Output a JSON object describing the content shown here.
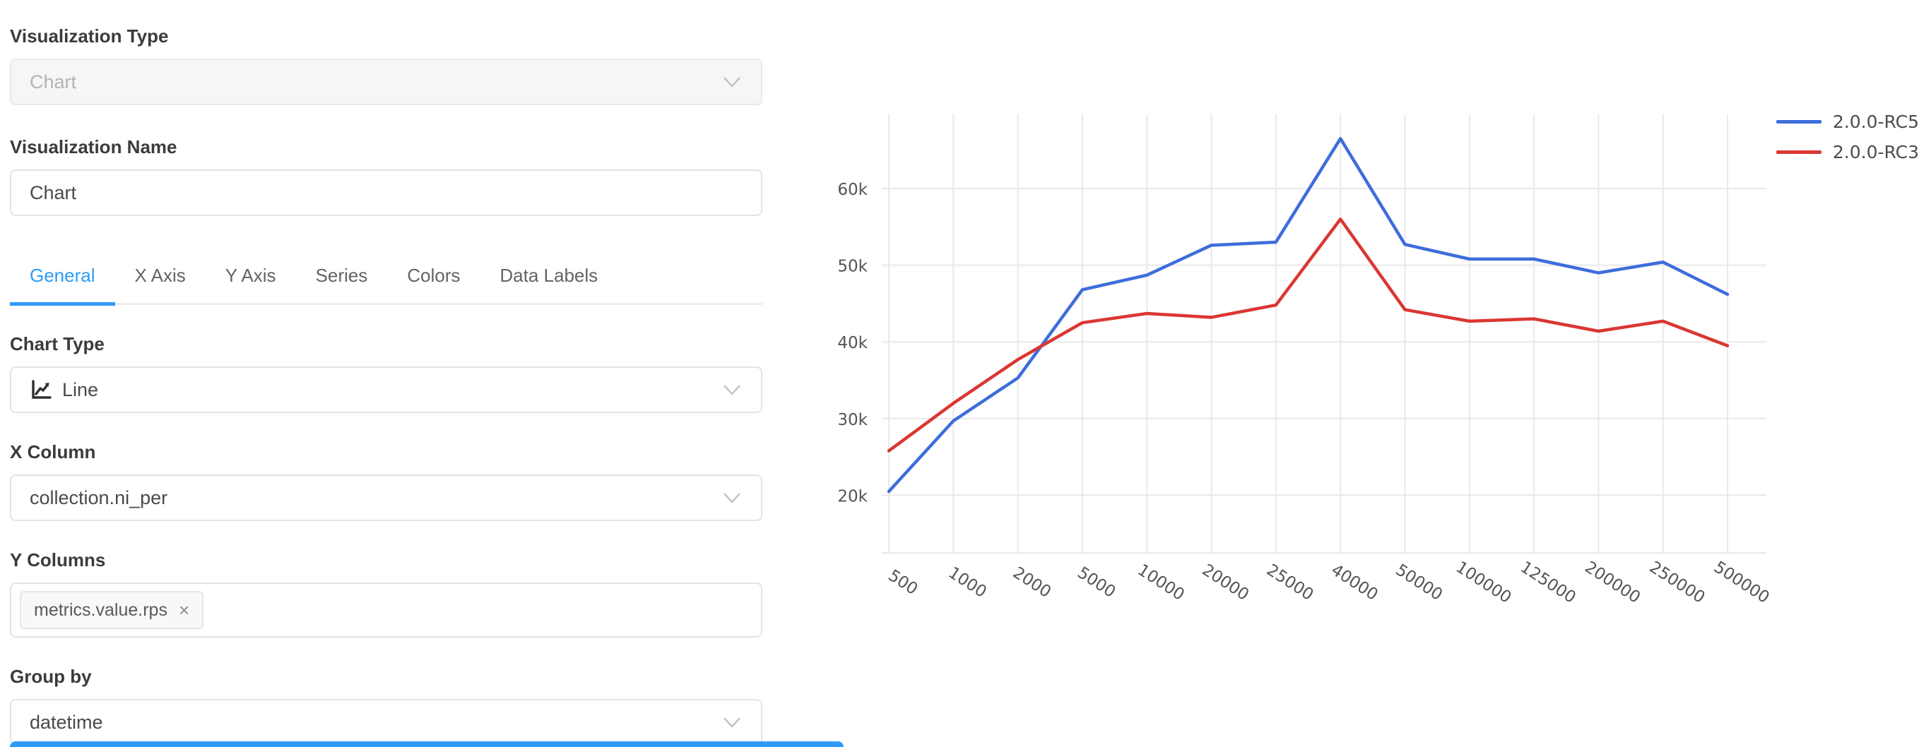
{
  "panel": {
    "visualization_type": {
      "label": "Visualization Type",
      "value": "Chart",
      "disabled": true
    },
    "visualization_name": {
      "label": "Visualization Name",
      "value": "Chart"
    },
    "tabs": [
      "General",
      "X Axis",
      "Y Axis",
      "Series",
      "Colors",
      "Data Labels"
    ],
    "active_tab": "General",
    "chart_type": {
      "label": "Chart Type",
      "value": "Line",
      "icon": "line-chart-icon"
    },
    "x_column": {
      "label": "X Column",
      "value": "collection.ni_per"
    },
    "y_columns": {
      "label": "Y Columns",
      "tags": [
        "metrics.value.rps"
      ],
      "remove_glyph": "×"
    },
    "group_by": {
      "label": "Group by",
      "value": "datetime"
    }
  },
  "colors": {
    "accent_blue": "#2e9bf6",
    "series_blue": "#3d6ddb",
    "series_red": "#da3732",
    "gridline": "#e9e9e9",
    "tick_text": "#545454"
  },
  "chart_data": {
    "type": "line",
    "categories": [
      "500",
      "1000",
      "2000",
      "5000",
      "10000",
      "20000",
      "25000",
      "40000",
      "50000",
      "100000",
      "125000",
      "200000",
      "250000",
      "500000"
    ],
    "series": [
      {
        "name": "2.0.0-RC5",
        "color": "#3d6ddb",
        "values": [
          20500,
          29700,
          35300,
          46800,
          48700,
          52600,
          53000,
          66500,
          52700,
          50800,
          50800,
          49000,
          50400,
          46200
        ]
      },
      {
        "name": "2.0.0-RC3",
        "color": "#da3732",
        "values": [
          25800,
          32000,
          37700,
          42500,
          43700,
          43200,
          44800,
          56000,
          44200,
          42700,
          43000,
          41400,
          42700,
          39500
        ]
      }
    ],
    "yticks": [
      {
        "value": 20000,
        "label": "20k"
      },
      {
        "value": 30000,
        "label": "30k"
      },
      {
        "value": 40000,
        "label": "40k"
      },
      {
        "value": 50000,
        "label": "50k"
      },
      {
        "value": 60000,
        "label": "60k"
      }
    ],
    "ylim": [
      12500,
      68000
    ],
    "xlabel": "",
    "ylabel": "",
    "title": "",
    "grid": true,
    "x_label_rotation_deg": 33,
    "legend_position": "top-right"
  }
}
